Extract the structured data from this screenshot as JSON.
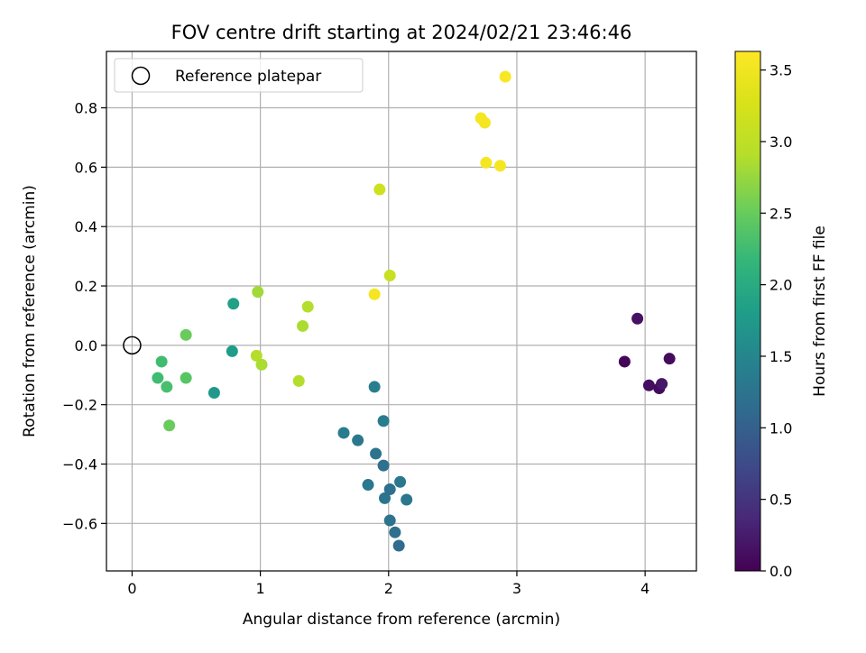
{
  "chart_data": {
    "type": "scatter",
    "title": "FOV centre drift starting at 2024/02/21 23:46:46",
    "xlabel": "Angular distance from reference (arcmin)",
    "ylabel": "Rotation from reference (arcmin)",
    "xlim": [
      -0.2,
      4.4
    ],
    "ylim": [
      -0.76,
      0.99
    ],
    "x_ticks": [
      0,
      1,
      2,
      3,
      4
    ],
    "x_tick_labels": [
      "0",
      "1",
      "2",
      "3",
      "4"
    ],
    "y_ticks": [
      -0.6,
      -0.4,
      -0.2,
      0.0,
      0.2,
      0.4,
      0.6,
      0.8
    ],
    "y_tick_labels": [
      "−0.6",
      "−0.4",
      "−0.2",
      "0.0",
      "0.2",
      "0.4",
      "0.6",
      "0.8"
    ],
    "grid": true,
    "legend": {
      "position": "upper-left",
      "entries": [
        "Reference platepar"
      ]
    },
    "reference_point": {
      "x": 0.0,
      "y": 0.0
    },
    "colorbar": {
      "label": "Hours from first FF file",
      "colormap": "viridis",
      "range": [
        0.0,
        3.63
      ],
      "ticks": [
        0.0,
        0.5,
        1.0,
        1.5,
        2.0,
        2.5,
        3.0,
        3.5
      ],
      "tick_labels": [
        "0.0",
        "0.5",
        "1.0",
        "1.5",
        "2.0",
        "2.5",
        "3.0",
        "3.5"
      ]
    },
    "points": [
      {
        "x": 3.84,
        "y": -0.055,
        "c": 0.05
      },
      {
        "x": 3.94,
        "y": 0.09,
        "c": 0.15
      },
      {
        "x": 4.19,
        "y": -0.045,
        "c": 0.1
      },
      {
        "x": 4.03,
        "y": -0.135,
        "c": 0.12
      },
      {
        "x": 4.11,
        "y": -0.145,
        "c": 0.08
      },
      {
        "x": 4.13,
        "y": -0.13,
        "c": 0.2
      },
      {
        "x": 2.08,
        "y": -0.675,
        "c": 1.15
      },
      {
        "x": 2.05,
        "y": -0.63,
        "c": 1.2
      },
      {
        "x": 2.01,
        "y": -0.59,
        "c": 1.25
      },
      {
        "x": 1.97,
        "y": -0.515,
        "c": 1.25
      },
      {
        "x": 2.01,
        "y": -0.485,
        "c": 1.2
      },
      {
        "x": 2.09,
        "y": -0.46,
        "c": 1.3
      },
      {
        "x": 2.14,
        "y": -0.52,
        "c": 1.3
      },
      {
        "x": 1.84,
        "y": -0.47,
        "c": 1.3
      },
      {
        "x": 1.96,
        "y": -0.405,
        "c": 1.2
      },
      {
        "x": 1.9,
        "y": -0.365,
        "c": 1.25
      },
      {
        "x": 1.76,
        "y": -0.32,
        "c": 1.3
      },
      {
        "x": 1.65,
        "y": -0.295,
        "c": 1.35
      },
      {
        "x": 1.96,
        "y": -0.255,
        "c": 1.35
      },
      {
        "x": 1.89,
        "y": -0.14,
        "c": 1.4
      },
      {
        "x": 0.64,
        "y": -0.16,
        "c": 1.75
      },
      {
        "x": 0.78,
        "y": -0.02,
        "c": 1.8
      },
      {
        "x": 0.79,
        "y": 0.14,
        "c": 1.85
      },
      {
        "x": 0.2,
        "y": -0.11,
        "c": 2.25
      },
      {
        "x": 0.23,
        "y": -0.055,
        "c": 2.25
      },
      {
        "x": 0.27,
        "y": -0.14,
        "c": 2.3
      },
      {
        "x": 0.29,
        "y": -0.27,
        "c": 2.5
      },
      {
        "x": 0.42,
        "y": -0.11,
        "c": 2.4
      },
      {
        "x": 0.42,
        "y": 0.035,
        "c": 2.5
      },
      {
        "x": 0.97,
        "y": -0.035,
        "c": 2.9
      },
      {
        "x": 1.01,
        "y": -0.065,
        "c": 2.85
      },
      {
        "x": 0.98,
        "y": 0.18,
        "c": 2.8
      },
      {
        "x": 1.3,
        "y": -0.12,
        "c": 2.9
      },
      {
        "x": 1.33,
        "y": 0.065,
        "c": 2.85
      },
      {
        "x": 1.37,
        "y": 0.13,
        "c": 2.9
      },
      {
        "x": 2.01,
        "y": 0.235,
        "c": 3.1
      },
      {
        "x": 1.93,
        "y": 0.525,
        "c": 3.15
      },
      {
        "x": 1.89,
        "y": 0.172,
        "c": 3.55
      },
      {
        "x": 2.72,
        "y": 0.765,
        "c": 3.55
      },
      {
        "x": 2.75,
        "y": 0.75,
        "c": 3.55
      },
      {
        "x": 2.76,
        "y": 0.615,
        "c": 3.55
      },
      {
        "x": 2.87,
        "y": 0.605,
        "c": 3.55
      },
      {
        "x": 2.91,
        "y": 0.905,
        "c": 3.6
      }
    ]
  }
}
